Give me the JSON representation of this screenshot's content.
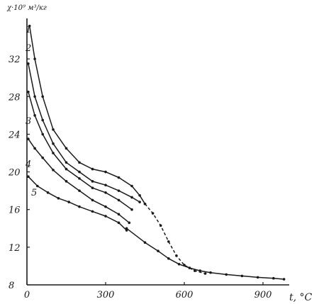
{
  "chart_data": {
    "type": "line",
    "ylabel": "χ·10⁹ м³/кг",
    "xlabel": "t, °C",
    "xlim": [
      0,
      1000
    ],
    "ylim": [
      8,
      36
    ],
    "x_ticks": [
      {
        "value": 0,
        "label": "0"
      },
      {
        "value": 300,
        "label": "300"
      },
      {
        "value": 600,
        "label": "600"
      },
      {
        "value": 900,
        "label": "900"
      }
    ],
    "y_ticks": [
      {
        "value": 8,
        "label": "8"
      },
      {
        "value": 12,
        "label": "12"
      },
      {
        "value": 16,
        "label": "16"
      },
      {
        "value": 20,
        "label": "20"
      },
      {
        "value": 24,
        "label": "24"
      },
      {
        "value": 28,
        "label": "28"
      },
      {
        "value": 32,
        "label": "32"
      }
    ],
    "grid": false,
    "series": [
      {
        "name": "1",
        "x": [
          10,
          30,
          60,
          100,
          150,
          200,
          250,
          300,
          350,
          400,
          430,
          450
        ],
        "y": [
          35.5,
          32.0,
          28.0,
          24.5,
          22.5,
          21.0,
          20.3,
          20.0,
          19.4,
          18.5,
          17.5,
          16.6
        ]
      },
      {
        "name": "2",
        "x": [
          5,
          30,
          60,
          100,
          150,
          200,
          250,
          300,
          350,
          400,
          430
        ],
        "y": [
          31.5,
          28.0,
          25.5,
          23.0,
          21.0,
          20.0,
          19.0,
          18.6,
          18.0,
          17.3,
          16.8
        ]
      },
      {
        "name": "3",
        "x": [
          5,
          30,
          60,
          100,
          150,
          200,
          250,
          300,
          350,
          400
        ],
        "y": [
          28.5,
          26.0,
          24.0,
          22.0,
          20.3,
          19.3,
          18.3,
          17.8,
          17.0,
          16.0
        ]
      },
      {
        "name": "4",
        "x": [
          5,
          30,
          60,
          100,
          150,
          200,
          250,
          300,
          350,
          390
        ],
        "y": [
          23.5,
          22.5,
          21.5,
          20.2,
          19.0,
          18.0,
          17.0,
          16.3,
          15.5,
          14.6
        ]
      },
      {
        "name": "5",
        "x": [
          5,
          40,
          80,
          120,
          160,
          200,
          250,
          300,
          350,
          380
        ],
        "y": [
          19.5,
          18.5,
          17.8,
          17.2,
          16.8,
          16.3,
          15.8,
          15.3,
          14.6,
          13.8
        ]
      }
    ],
    "common_curve": {
      "x": [
        380,
        450,
        500,
        540,
        580,
        620,
        660,
        700,
        760,
        820,
        880,
        940,
        980
      ],
      "y": [
        14.0,
        12.5,
        11.6,
        10.8,
        10.2,
        9.8,
        9.5,
        9.3,
        9.1,
        8.95,
        8.8,
        8.7,
        8.6
      ]
    },
    "dashed_curve": {
      "x": [
        450,
        480,
        510,
        540,
        570,
        600,
        640,
        680
      ],
      "y": [
        16.6,
        15.6,
        14.3,
        12.6,
        11.1,
        10.1,
        9.5,
        9.2
      ]
    }
  }
}
